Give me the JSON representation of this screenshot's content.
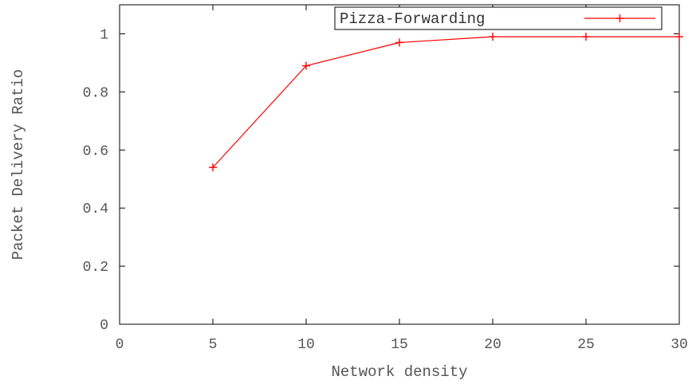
{
  "chart_data": {
    "type": "line",
    "title": "",
    "xlabel": "Network density",
    "ylabel": "Packet Delivery Ratio",
    "xlim": [
      0,
      30
    ],
    "ylim": [
      0,
      1.1
    ],
    "xticks": [
      0,
      5,
      10,
      15,
      20,
      25,
      30
    ],
    "xtick_labels": [
      "0",
      "5",
      "10",
      "15",
      "20",
      "25",
      "30"
    ],
    "yticks": [
      0,
      0.2,
      0.4,
      0.6,
      0.8,
      1.0
    ],
    "ytick_labels": [
      "0",
      "0.2",
      "0.4",
      "0.6",
      "0.8",
      "1"
    ],
    "grid": false,
    "legend_position": "top-right",
    "series": [
      {
        "name": "Pizza-Forwarding",
        "color": "#ff0000",
        "marker": "plus",
        "x": [
          5,
          10,
          15,
          20,
          25,
          30
        ],
        "y": [
          0.54,
          0.89,
          0.97,
          0.99,
          0.99,
          0.99
        ]
      }
    ]
  }
}
